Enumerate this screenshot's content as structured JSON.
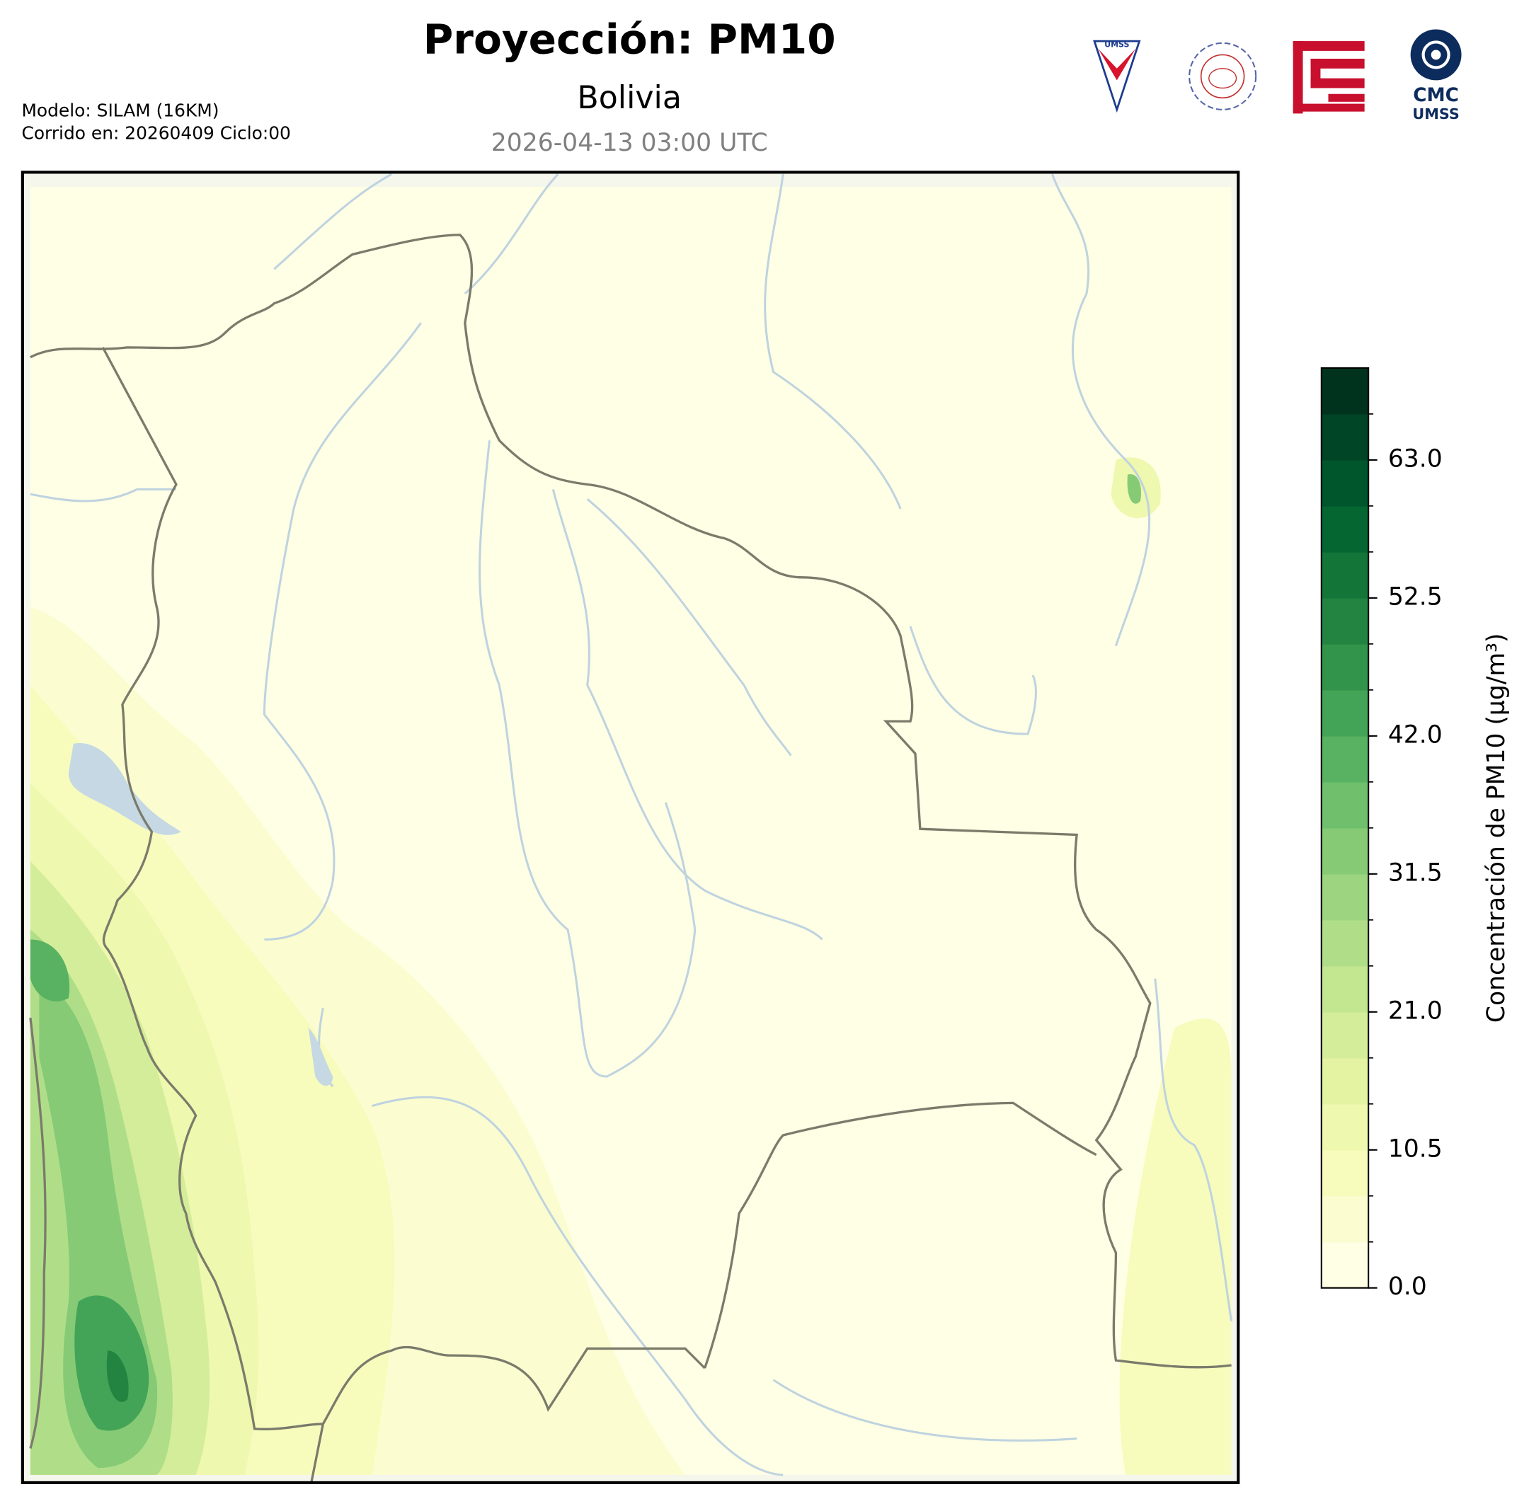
{
  "header": {
    "title": "Proyección: PM10",
    "subtitle": "Bolivia",
    "valid_time": "2026-04-13 03:00 UTC",
    "model": "Modelo: SILAM (16KM)",
    "run": "Corrido en: 20260409 Ciclo:00"
  },
  "logos": {
    "umss": "UMSS",
    "cmc": "CMC",
    "cmc_sub": "UMSS"
  },
  "chart_data": {
    "type": "colorbar",
    "label": "Concentración de PM10 (µg/m³)",
    "ylim": [
      0,
      70
    ],
    "yticks": [
      {
        "value": 0,
        "label": "0.0"
      },
      10.5,
      {
        "value": 21,
        "label": "21.0"
      },
      31.5,
      {
        "value": 42,
        "label": "42.0"
      },
      52.5,
      {
        "value": 63,
        "label": "63.0"
      }
    ],
    "colors": [
      "#ffffe5",
      "#fbfdd1",
      "#f7fcbd",
      "#eef8ae",
      "#e3f3a2",
      "#d4ed9a",
      "#c3e691",
      "#b0de88",
      "#9cd47f",
      "#86ca76",
      "#6fbf6c",
      "#58b262",
      "#43a457",
      "#32944b",
      "#228440",
      "#137538",
      "#056631",
      "#00562c",
      "#004526",
      "#00331d"
    ]
  }
}
